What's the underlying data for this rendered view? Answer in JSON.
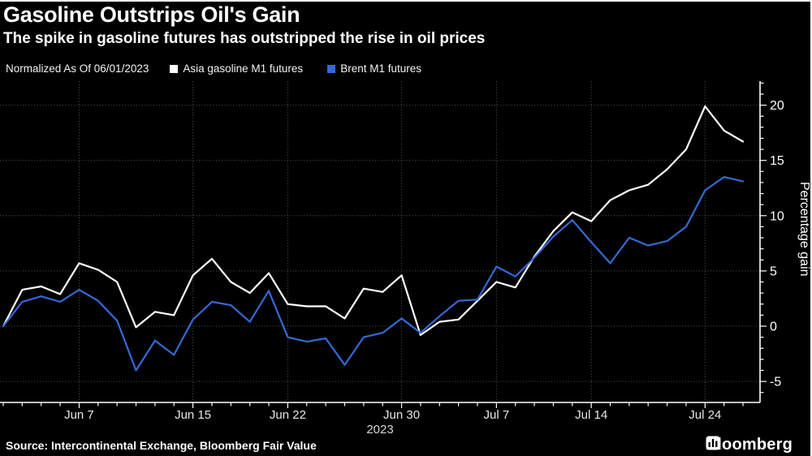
{
  "header": {
    "title": "Gasoline Outstrips Oil's Gain",
    "subtitle": "The spike in gasoline futures has outstripped the rise in oil prices"
  },
  "legend": {
    "note": "Normalized As Of 06/01/2023",
    "items": [
      {
        "label": "Asia gasoline M1 futures",
        "color": "#ffffff"
      },
      {
        "label": "Brent M1 futures",
        "color": "#3569d6"
      }
    ]
  },
  "chart_data": {
    "type": "line",
    "title": "Gasoline Outstrips Oil's Gain",
    "subtitle": "The spike in gasoline futures has outstripped the rise in oil prices",
    "note": "Normalized As Of 06/01/2023",
    "x": [
      "Jun 1",
      "Jun 2",
      "Jun 5",
      "Jun 6",
      "Jun 7",
      "Jun 8",
      "Jun 9",
      "Jun 12",
      "Jun 13",
      "Jun 14",
      "Jun 15",
      "Jun 16",
      "Jun 19",
      "Jun 20",
      "Jun 21",
      "Jun 22",
      "Jun 23",
      "Jun 26",
      "Jun 27",
      "Jun 28",
      "Jun 29",
      "Jun 30",
      "Jul 3",
      "Jul 4",
      "Jul 5",
      "Jul 6",
      "Jul 7",
      "Jul 10",
      "Jul 11",
      "Jul 12",
      "Jul 13",
      "Jul 14",
      "Jul 17",
      "Jul 18",
      "Jul 19",
      "Jul 20",
      "Jul 21",
      "Jul 24",
      "Jul 25",
      "Jul 26"
    ],
    "series": [
      {
        "name": "Asia gasoline M1 futures",
        "color": "#ffffff",
        "values": [
          0.0,
          3.3,
          3.6,
          2.9,
          5.7,
          5.1,
          4.0,
          -0.1,
          1.3,
          1.0,
          4.6,
          6.1,
          4.0,
          3.0,
          4.8,
          2.0,
          1.8,
          1.8,
          0.7,
          3.4,
          3.1,
          4.6,
          -0.8,
          0.4,
          0.6,
          2.3,
          4.0,
          3.5,
          6.3,
          8.6,
          10.3,
          9.5,
          11.4,
          12.3,
          12.8,
          14.2,
          16.0,
          19.9,
          17.7,
          16.7
        ]
      },
      {
        "name": "Brent M1 futures",
        "color": "#3569d6",
        "values": [
          0.0,
          2.2,
          2.7,
          2.2,
          3.3,
          2.3,
          0.5,
          -4.0,
          -1.3,
          -2.6,
          0.6,
          2.2,
          1.9,
          0.4,
          3.2,
          -1.0,
          -1.4,
          -1.1,
          -3.5,
          -1.0,
          -0.6,
          0.7,
          -0.6,
          0.9,
          2.3,
          2.4,
          5.4,
          4.5,
          6.2,
          8.1,
          9.6,
          7.6,
          5.7,
          8.0,
          7.3,
          7.7,
          9.0,
          12.3,
          13.5,
          13.1
        ]
      }
    ],
    "ylabel": "Percentage gain",
    "ylim": [
      -6.9,
      22.2
    ],
    "yticks_major": [
      -5,
      0,
      5,
      10,
      15,
      20
    ],
    "xticks": [
      {
        "i": 4,
        "label": "Jun 7"
      },
      {
        "i": 10,
        "label": "Jun 15"
      },
      {
        "i": 15,
        "label": "Jun 22"
      },
      {
        "i": 21,
        "label": "Jun 30"
      },
      {
        "i": 26,
        "label": "Jul 7"
      },
      {
        "i": 31,
        "label": "Jul 14"
      },
      {
        "i": 37,
        "label": "Jul 24"
      }
    ],
    "year_label": "2023",
    "grid": "dotted",
    "legend_position": "top-left",
    "axis_color": "#ffffff",
    "grid_color": "#555555"
  },
  "footer": {
    "source": "Source: Intercontinental Exchange, Bloomberg Fair Value",
    "logo": "Bloomberg"
  }
}
